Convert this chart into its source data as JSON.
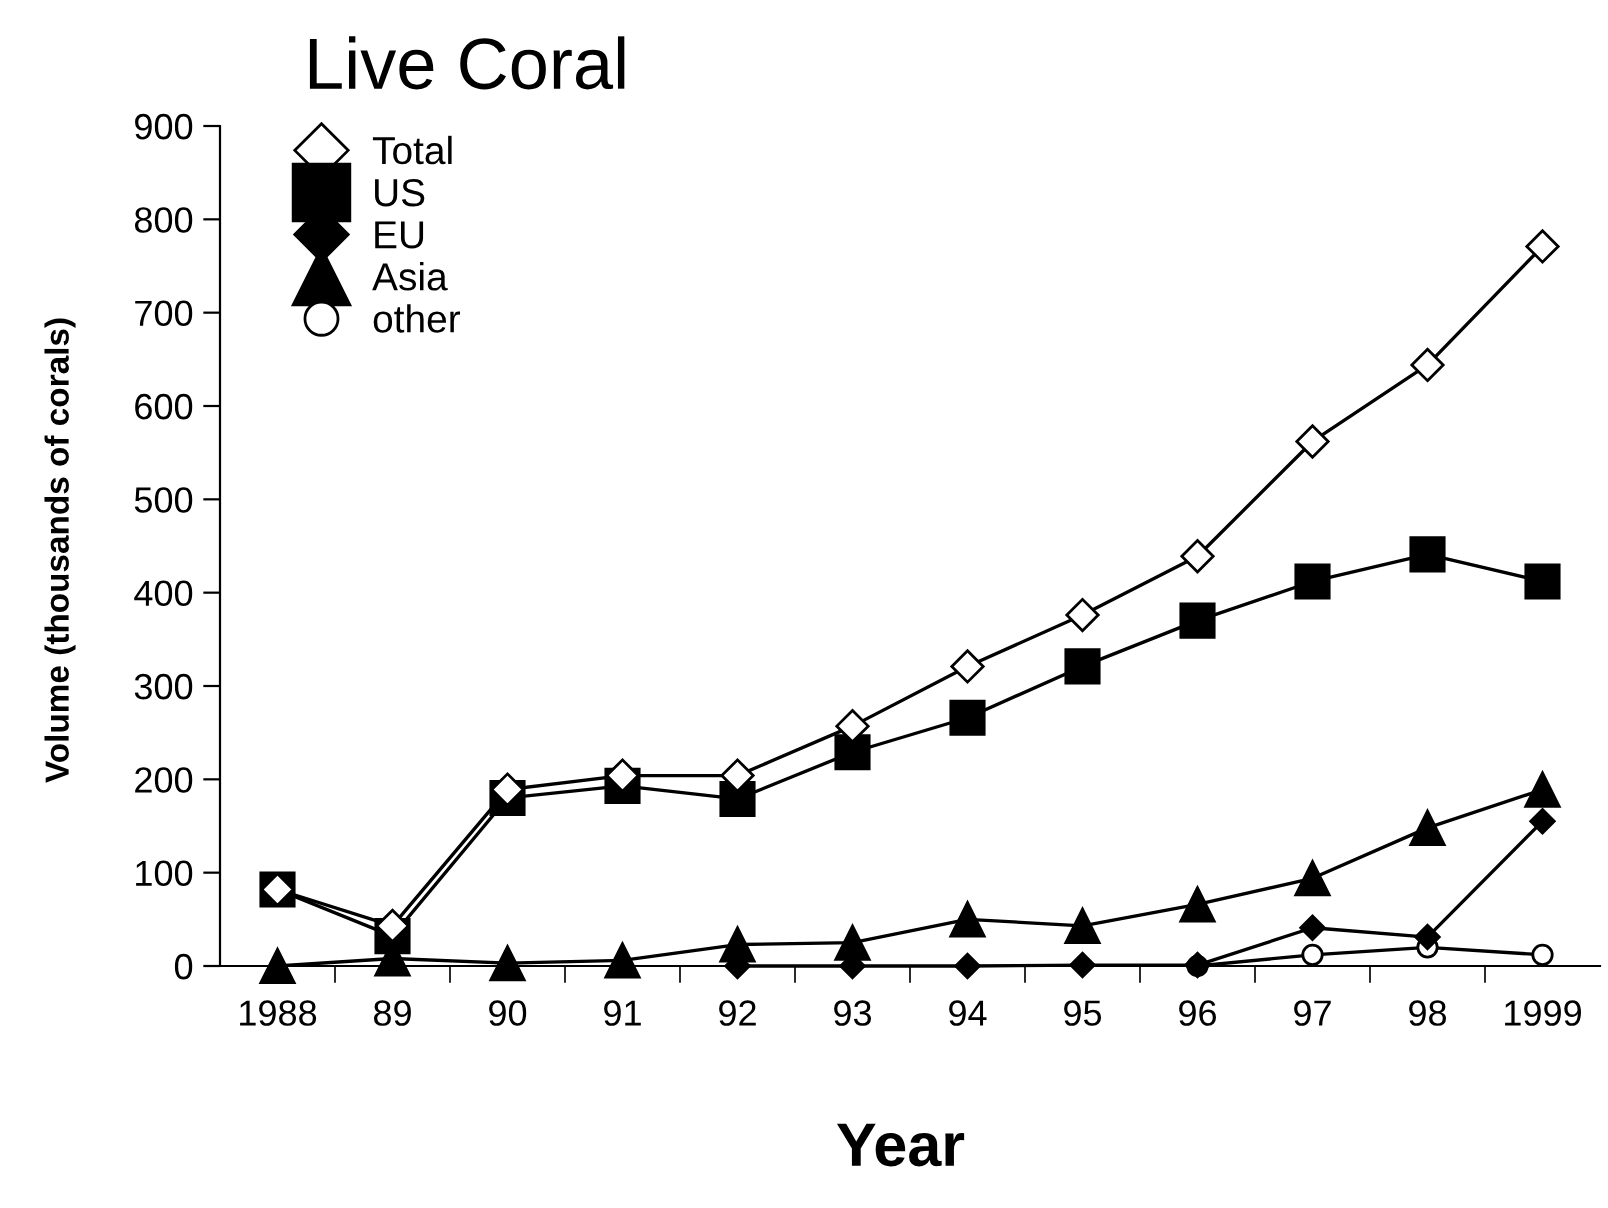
{
  "chart_data": {
    "type": "line",
    "title": "Live Coral",
    "xlabel": "Year",
    "ylabel": "Volume (thousands of corals)",
    "categories": [
      "1988",
      "89",
      "90",
      "91",
      "92",
      "93",
      "94",
      "95",
      "96",
      "97",
      "98",
      "1999"
    ],
    "series": [
      {
        "name": "Total",
        "color": "#000000",
        "marker": "diamond",
        "values": [
          82,
          43,
          189,
          204,
          204,
          257,
          321,
          376,
          439,
          562,
          644,
          771
        ]
      },
      {
        "name": "US",
        "color": "#000000",
        "marker": "square",
        "values": [
          82,
          32,
          180,
          193,
          179,
          229,
          266,
          321,
          370,
          412,
          441,
          412
        ]
      },
      {
        "name": "EU",
        "color": "#000000",
        "marker": "diamond",
        "values": [
          null,
          null,
          null,
          null,
          0,
          0,
          0,
          1,
          1,
          41,
          31,
          155
        ]
      },
      {
        "name": "Asia",
        "color": "#000000",
        "marker": "triangle",
        "values": [
          0,
          8,
          3,
          6,
          23,
          25,
          50,
          43,
          66,
          94,
          148,
          189
        ]
      },
      {
        "name": "other",
        "color": "#000000",
        "marker": "circle",
        "values": [
          null,
          null,
          null,
          null,
          null,
          null,
          null,
          null,
          0,
          12,
          20,
          12
        ]
      }
    ],
    "ylim": [
      0,
      900
    ],
    "yticks": [
      0,
      100,
      200,
      300,
      400,
      500,
      600,
      700,
      800,
      900
    ],
    "grid": false,
    "legend": "top left",
    "line_style": "solid"
  }
}
